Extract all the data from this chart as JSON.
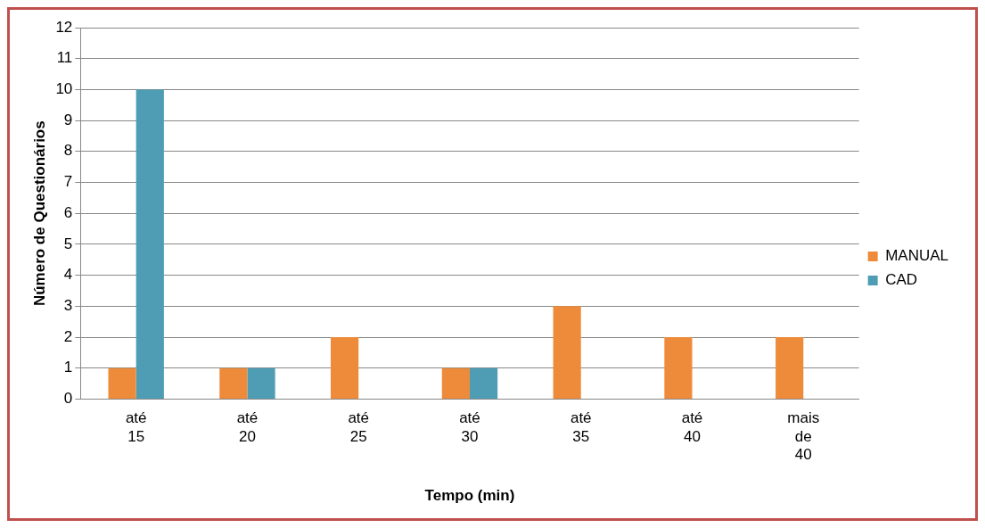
{
  "chart_data": {
    "type": "bar",
    "xlabel": "Tempo (min)",
    "ylabel": "Número de Questionários",
    "categories": [
      "até 15",
      "até 20",
      "até 25",
      "até 30",
      "até 35",
      "até 40",
      "mais de 40"
    ],
    "series": [
      {
        "name": "MANUAL",
        "color": "#ed8b3b",
        "values": [
          1,
          1,
          2,
          1,
          3,
          2,
          2
        ]
      },
      {
        "name": "CAD",
        "color": "#4f9db5",
        "values": [
          10,
          1,
          0,
          1,
          0,
          0,
          0
        ]
      }
    ],
    "ylim": [
      0,
      12
    ],
    "yticks": [
      0,
      1,
      2,
      3,
      4,
      5,
      6,
      7,
      8,
      9,
      10,
      11,
      12
    ],
    "grid": "y",
    "legend": "right"
  }
}
